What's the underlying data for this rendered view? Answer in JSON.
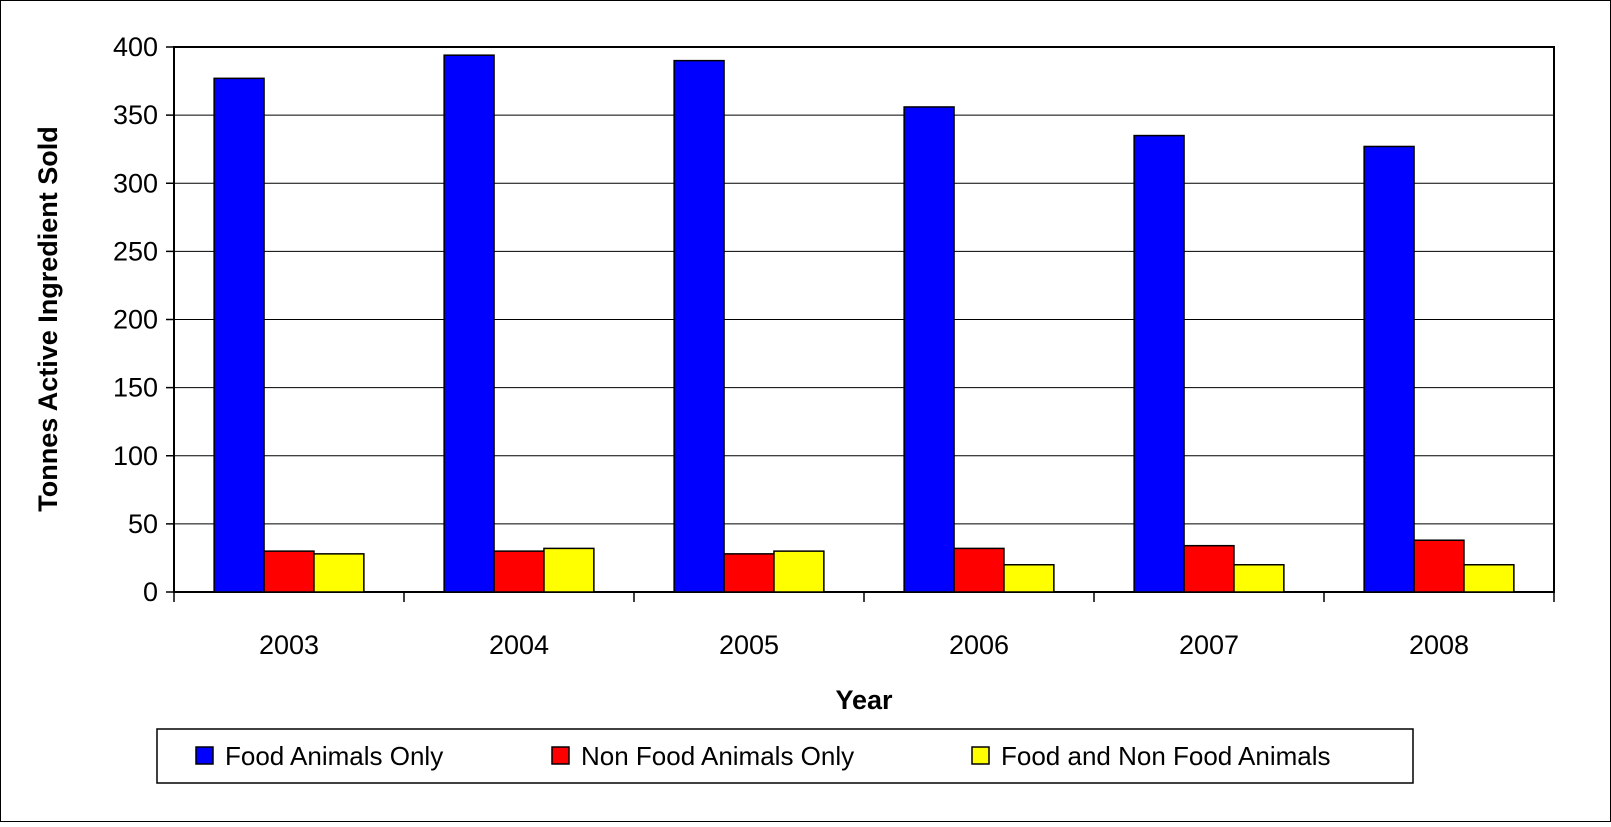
{
  "chart_data": {
    "type": "bar",
    "title": "",
    "xlabel": "Year",
    "ylabel": "Tonnes Active Ingredient Sold",
    "categories": [
      "2003",
      "2004",
      "2005",
      "2006",
      "2007",
      "2008"
    ],
    "ylim": [
      0,
      400
    ],
    "yticks": [
      0,
      50,
      100,
      150,
      200,
      250,
      300,
      350,
      400
    ],
    "grid": "horizontal",
    "legend_position": "bottom",
    "series": [
      {
        "name": "Food Animals Only",
        "color": "#0000ff",
        "values": [
          377,
          394,
          390,
          356,
          335,
          327
        ]
      },
      {
        "name": "Non Food Animals Only",
        "color": "#ff0000",
        "values": [
          30,
          30,
          28,
          32,
          34,
          38
        ]
      },
      {
        "name": "Food and Non Food Animals",
        "color": "#ffff00",
        "values": [
          28,
          32,
          30,
          20,
          20,
          20
        ]
      }
    ]
  }
}
